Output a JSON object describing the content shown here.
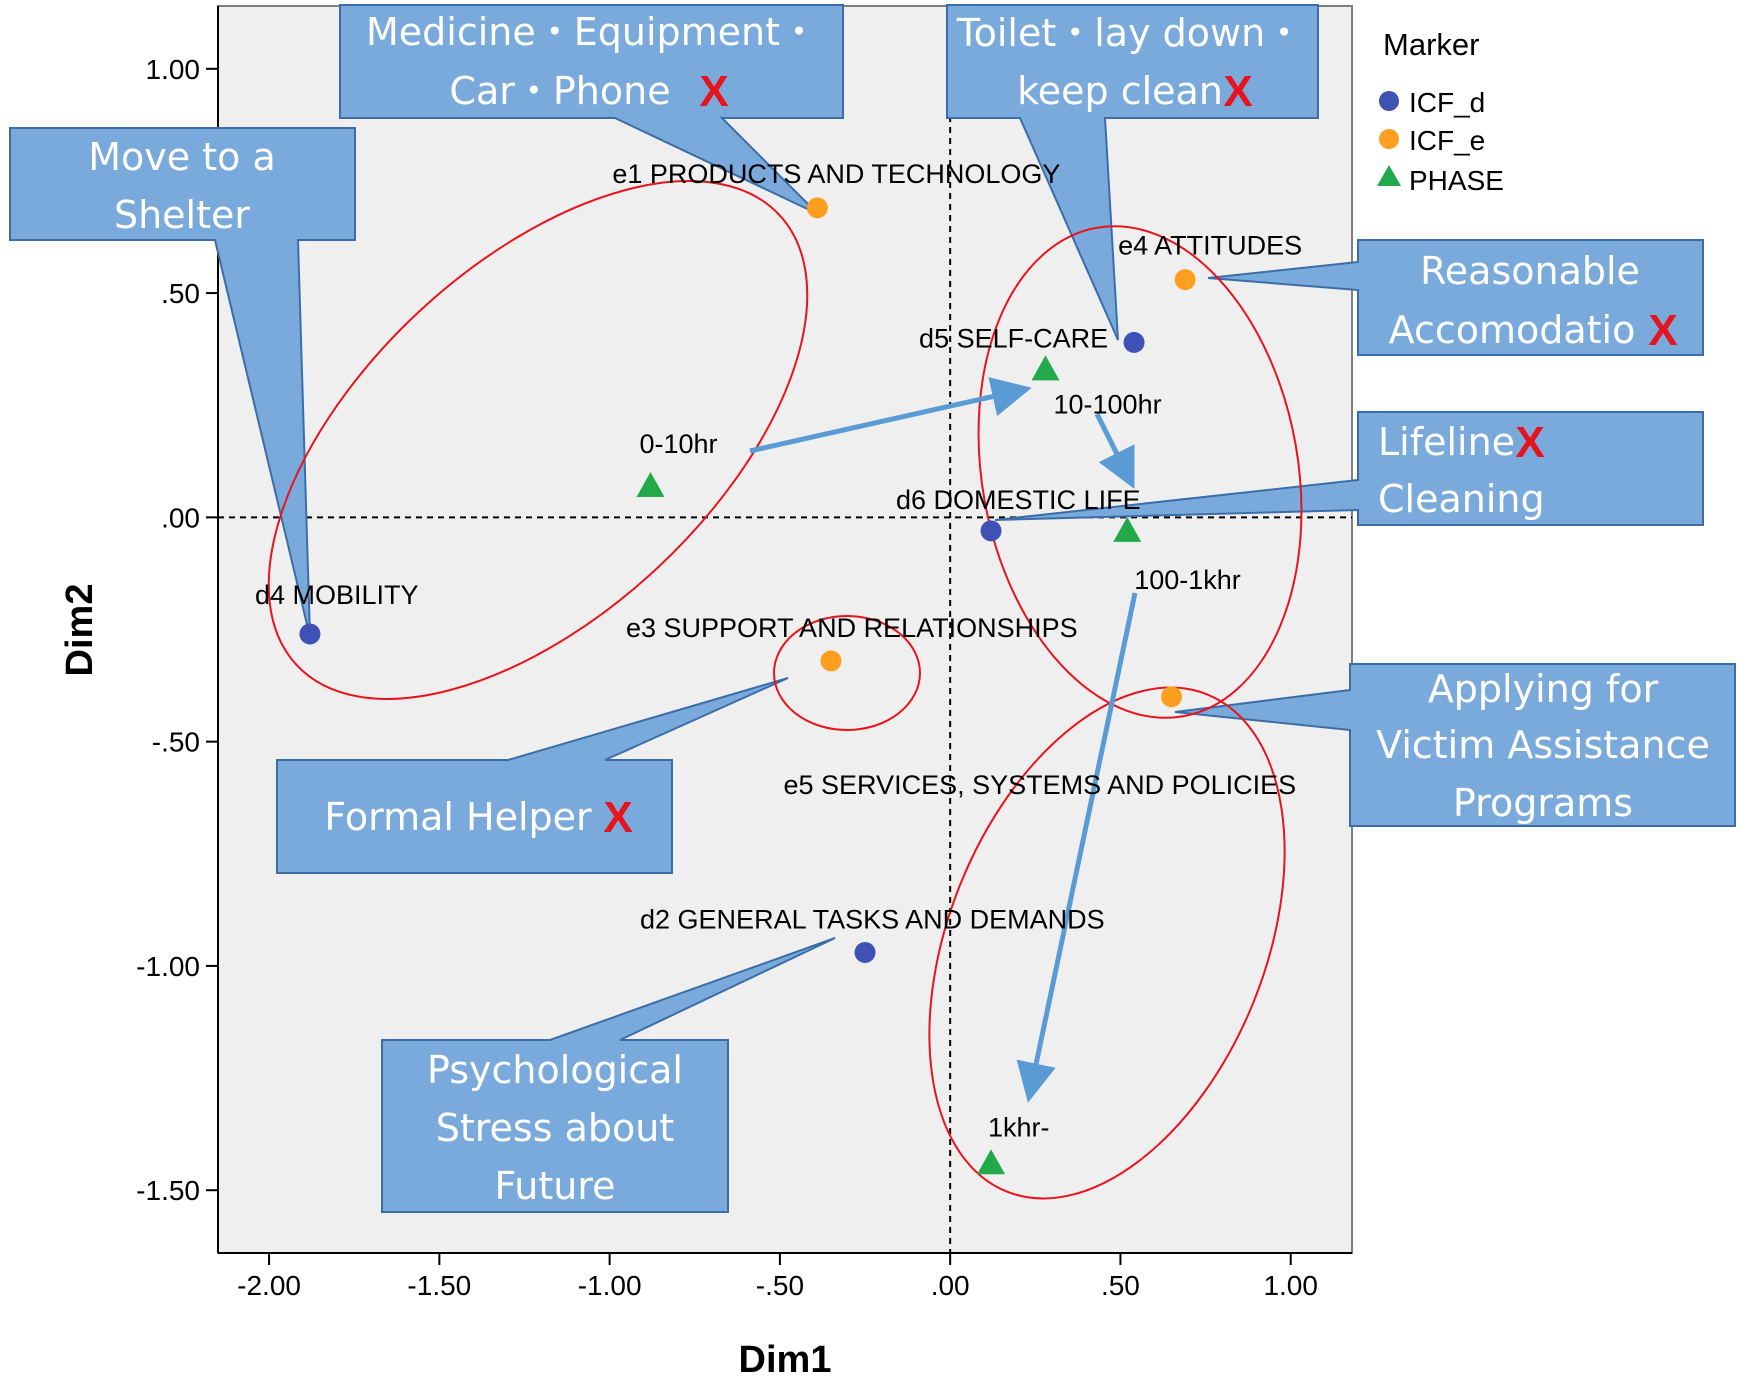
{
  "chart_data": {
    "type": "scatter",
    "xlabel": "Dim1",
    "ylabel": "Dim2",
    "xlim": [
      -2.15,
      1.18
    ],
    "ylim": [
      -1.64,
      1.14
    ],
    "xticks": [
      {
        "v": -2.0,
        "label": "-2.00"
      },
      {
        "v": -1.5,
        "label": "-1.50"
      },
      {
        "v": -1.0,
        "label": "-1.00"
      },
      {
        "v": -0.5,
        "label": "-.50"
      },
      {
        "v": 0.0,
        "label": ".00"
      },
      {
        "v": 0.5,
        "label": ".50"
      },
      {
        "v": 1.0,
        "label": "1.00"
      }
    ],
    "yticks": [
      {
        "v": 1.0,
        "label": "1.00"
      },
      {
        "v": 0.5,
        "label": ".50"
      },
      {
        "v": 0.0,
        "label": ".00"
      },
      {
        "v": -0.5,
        "label": "-.50"
      },
      {
        "v": -1.0,
        "label": "-1.00"
      },
      {
        "v": -1.5,
        "label": "-1.50"
      }
    ],
    "reference_lines": {
      "x": 0,
      "y": 0,
      "style": "dashed"
    },
    "legend": {
      "title": "Marker",
      "placement": "right",
      "entries": [
        {
          "name": "ICF_d",
          "shape": "circle",
          "color": "#3f51b5"
        },
        {
          "name": "ICF_e",
          "shape": "circle",
          "color": "#ff9e1f"
        },
        {
          "name": "PHASE",
          "shape": "triangle",
          "color": "#22a94a"
        }
      ]
    },
    "series": [
      {
        "name": "ICF_d",
        "marker": "circle",
        "color": "#3f51b5",
        "points": [
          {
            "label": "d4 MOBILITY",
            "x": -1.88,
            "y": -0.26
          },
          {
            "label": "d5 SELF-CARE",
            "x": 0.54,
            "y": 0.39
          },
          {
            "label": "d6 DOMESTIC LIFE",
            "x": 0.12,
            "y": -0.03
          },
          {
            "label": "d2 GENERAL TASKS AND DEMANDS",
            "x": -0.25,
            "y": -0.97
          }
        ]
      },
      {
        "name": "ICF_e",
        "marker": "circle",
        "color": "#ff9e1f",
        "points": [
          {
            "label": "e1 PRODUCTS AND TECHNOLOGY",
            "x": -0.39,
            "y": 0.69
          },
          {
            "label": "e4 ATTITUDES",
            "x": 0.69,
            "y": 0.53
          },
          {
            "label": "e3 SUPPORT AND RELATIONSHIPS",
            "x": -0.35,
            "y": -0.32
          },
          {
            "label": "e5 SERVICES, SYSTEMS AND POLICIES",
            "x": 0.65,
            "y": -0.4
          }
        ]
      },
      {
        "name": "PHASE",
        "marker": "triangle",
        "color": "#22a94a",
        "points": [
          {
            "label": "0-10hr",
            "x": -0.88,
            "y": 0.07
          },
          {
            "label": "10-100hr",
            "x": 0.28,
            "y": 0.33
          },
          {
            "label": "100-1khr",
            "x": 0.52,
            "y": -0.03
          },
          {
            "label": "1khr-",
            "x": 0.12,
            "y": -1.44
          }
        ]
      }
    ],
    "annotations": {
      "callouts": [
        {
          "lines": [
            "Medicine・Equipment・",
            "Car・Phone"
          ],
          "x_mark": "X"
        },
        {
          "lines": [
            "Toilet・lay down・",
            "keep clean"
          ],
          "x_mark": "X"
        },
        {
          "lines": [
            "Move to a",
            "Shelter"
          ],
          "x_mark": ""
        },
        {
          "lines": [
            "Reasonable",
            "Accomodatio"
          ],
          "x_mark": "X"
        },
        {
          "lines": [
            "Lifeline",
            "Cleaning"
          ],
          "x_mark": "X"
        },
        {
          "lines": [
            "Applying for",
            "Victim Assistance",
            "Programs"
          ],
          "x_mark": ""
        },
        {
          "lines": [
            "Formal Helper"
          ],
          "x_mark": "X"
        },
        {
          "lines": [
            "Psychological",
            "Stress about",
            "Future"
          ],
          "x_mark": ""
        }
      ]
    },
    "colors": {
      "plot_bg": "#efefef",
      "callout_fill": "#79aadb",
      "callout_stroke": "#3b6ea8",
      "ellipse": "#e8141d",
      "arrow": "#5b9bd5"
    }
  }
}
